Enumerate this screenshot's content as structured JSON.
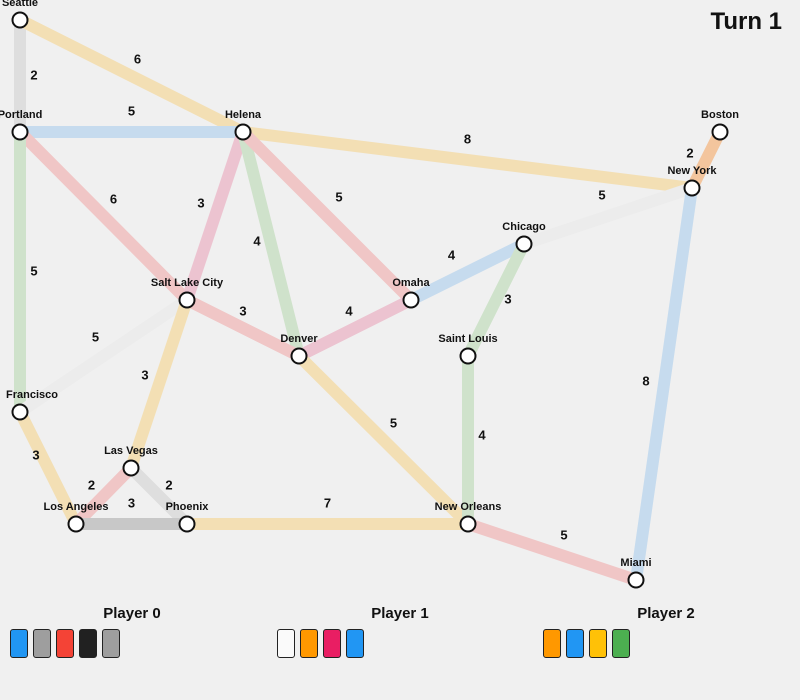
{
  "turn_label": "Turn 1",
  "colors": {
    "yellow": "#f3dfb4",
    "blue": "#c6dbee",
    "red": "#f0c6c6",
    "pink": "#ecc3d0",
    "green": "#cfe2cb",
    "gray": "#dedede",
    "orange": "#f3c59d",
    "white": "#ececec",
    "black": "#c8c8c8"
  },
  "cities": [
    {
      "id": "seattle",
      "name": "Seattle"
    },
    {
      "id": "portland",
      "name": "Portland"
    },
    {
      "id": "helena",
      "name": "Helena"
    },
    {
      "id": "boston",
      "name": "Boston"
    },
    {
      "id": "newyork",
      "name": "New York"
    },
    {
      "id": "chicago",
      "name": "Chicago"
    },
    {
      "id": "omaha",
      "name": "Omaha"
    },
    {
      "id": "saltlake",
      "name": "Salt Lake City"
    },
    {
      "id": "denver",
      "name": "Denver"
    },
    {
      "id": "stlouis",
      "name": "Saint Louis"
    },
    {
      "id": "sanfrancisco",
      "name": "Francisco"
    },
    {
      "id": "lasvegas",
      "name": "Las Vegas"
    },
    {
      "id": "losangeles",
      "name": "Los Angeles"
    },
    {
      "id": "phoenix",
      "name": "Phoenix"
    },
    {
      "id": "neworleans",
      "name": "New Orleans"
    },
    {
      "id": "miami",
      "name": "Miami"
    }
  ],
  "routes": [
    {
      "from": "seattle",
      "to": "portland",
      "color": "gray",
      "length": 2
    },
    {
      "from": "seattle",
      "to": "helena",
      "color": "yellow",
      "length": 6
    },
    {
      "from": "portland",
      "to": "helena",
      "color": "blue",
      "length": 5
    },
    {
      "from": "portland",
      "to": "saltlake",
      "color": "red",
      "length": 6
    },
    {
      "from": "portland",
      "to": "sanfrancisco",
      "color": "green",
      "length": 5
    },
    {
      "from": "helena",
      "to": "newyork",
      "color": "yellow",
      "length": 8
    },
    {
      "from": "helena",
      "to": "saltlake",
      "color": "pink",
      "length": 3
    },
    {
      "from": "helena",
      "to": "denver",
      "color": "green",
      "length": 4
    },
    {
      "from": "helena",
      "to": "omaha",
      "color": "red",
      "length": 5
    },
    {
      "from": "boston",
      "to": "newyork",
      "color": "orange",
      "length": 2
    },
    {
      "from": "newyork",
      "to": "chicago",
      "color": "white",
      "length": 5
    },
    {
      "from": "newyork",
      "to": "miami",
      "color": "blue",
      "length": 8
    },
    {
      "from": "chicago",
      "to": "omaha",
      "color": "blue",
      "length": 4
    },
    {
      "from": "chicago",
      "to": "stlouis",
      "color": "green",
      "length": 3
    },
    {
      "from": "omaha",
      "to": "denver",
      "color": "pink",
      "length": 4
    },
    {
      "from": "saltlake",
      "to": "denver",
      "color": "red",
      "length": 3
    },
    {
      "from": "saltlake",
      "to": "sanfrancisco",
      "color": "white",
      "length": 5
    },
    {
      "from": "saltlake",
      "to": "lasvegas",
      "color": "yellow",
      "length": 3
    },
    {
      "from": "denver",
      "to": "neworleans",
      "color": "yellow",
      "length": 5
    },
    {
      "from": "stlouis",
      "to": "neworleans",
      "color": "green",
      "length": 4
    },
    {
      "from": "sanfrancisco",
      "to": "losangeles",
      "color": "yellow",
      "length": 3
    },
    {
      "from": "lasvegas",
      "to": "losangeles",
      "color": "red",
      "length": 2
    },
    {
      "from": "lasvegas",
      "to": "phoenix",
      "color": "gray",
      "length": 2
    },
    {
      "from": "losangeles",
      "to": "phoenix",
      "color": "black",
      "length": 3
    },
    {
      "from": "phoenix",
      "to": "neworleans",
      "color": "yellow",
      "length": 7
    },
    {
      "from": "neworleans",
      "to": "miami",
      "color": "red",
      "length": 5
    }
  ],
  "card_colors": {
    "blue": "#2196f3",
    "gray": "#9e9e9e",
    "red": "#f44336",
    "black": "#212121",
    "white": "#fafafa",
    "orange": "#ff9800",
    "pink": "#e91e63",
    "yellow": "#ffc107",
    "green": "#4caf50"
  },
  "players": [
    {
      "name": "Player 0",
      "hand": [
        "blue",
        "gray",
        "red",
        "black",
        "gray"
      ]
    },
    {
      "name": "Player 1",
      "hand": [
        "white",
        "orange",
        "pink",
        "blue"
      ]
    },
    {
      "name": "Player 2",
      "hand": [
        "orange",
        "blue",
        "yellow",
        "green"
      ]
    }
  ]
}
